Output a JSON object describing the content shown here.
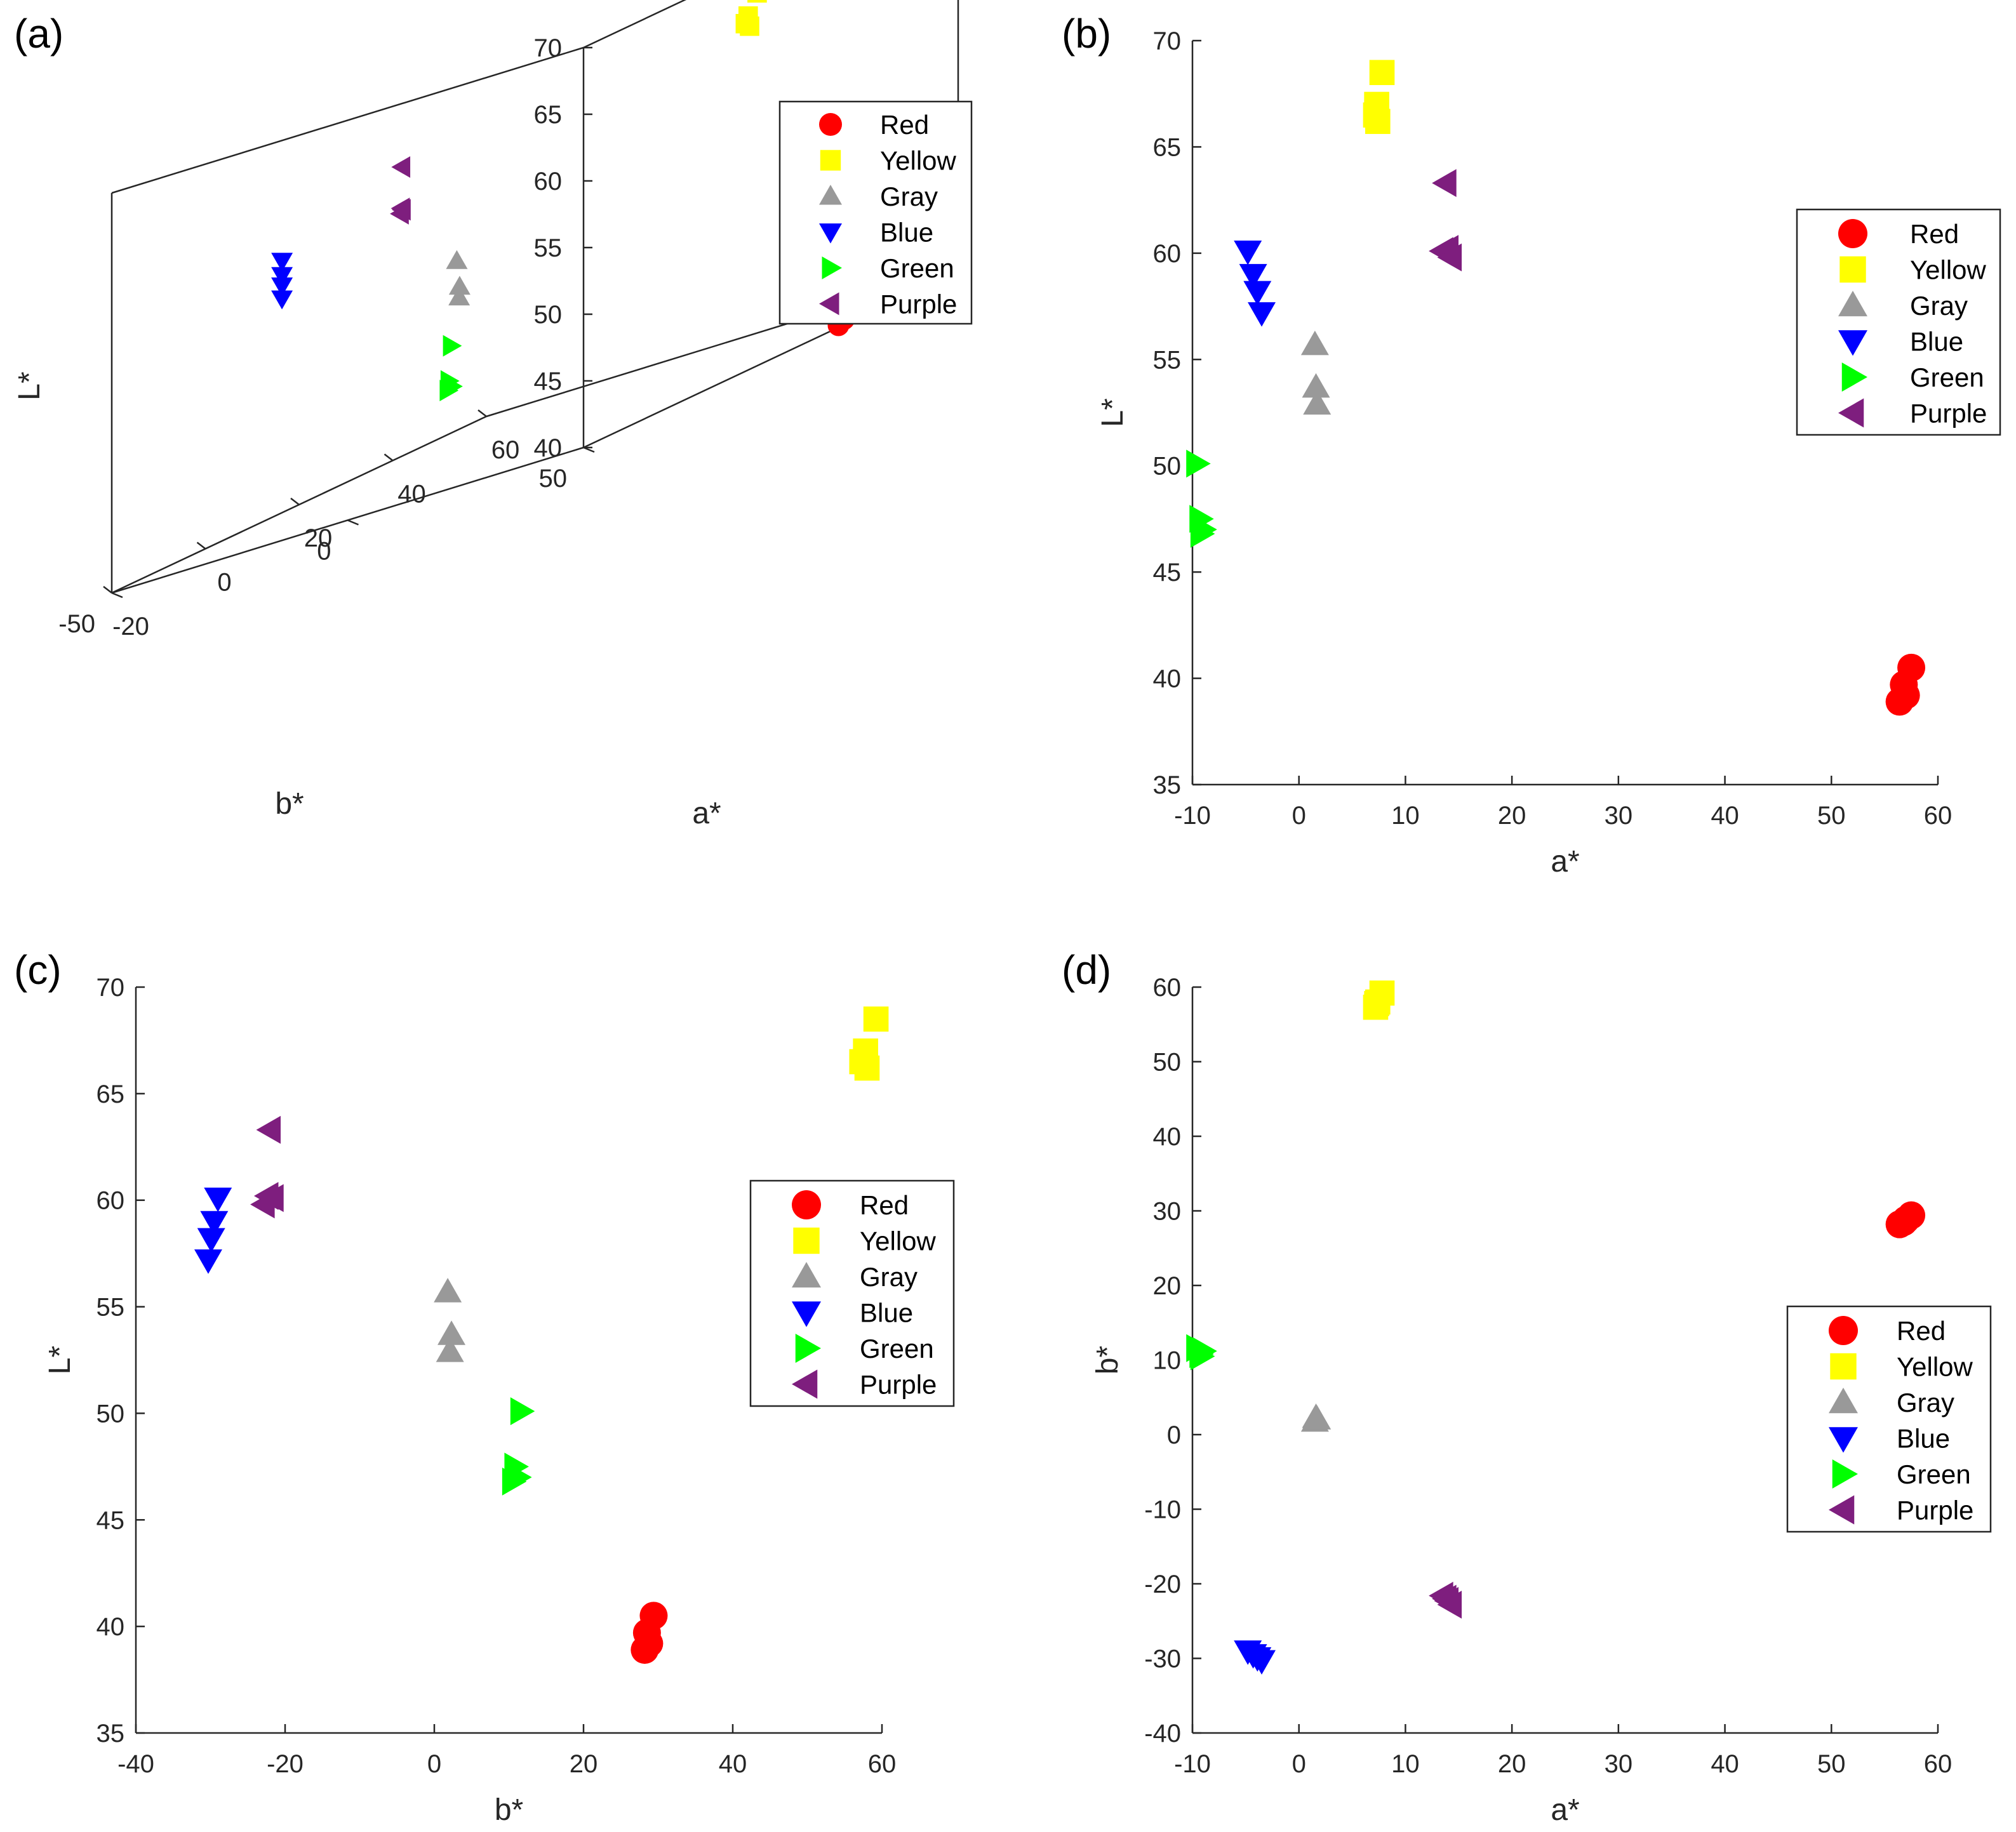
{
  "colors": {
    "Red": "#ff0000",
    "Yellow": "#ffff00",
    "Gray": "#999999",
    "Blue": "#0000ff",
    "Green": "#00ff00",
    "Purple": "#7e1e7e"
  },
  "chart_data": [
    {
      "panel": "(a)",
      "type": "scatter",
      "projection": "3d",
      "xlabel": "a*",
      "ylabel": "b*",
      "zlabel": "L*",
      "xlim": [
        -20,
        60
      ],
      "ylim": [
        -50,
        50
      ],
      "zlim": [
        40,
        70
      ],
      "xticks": [
        "-20",
        "0",
        "20",
        "40",
        "60"
      ],
      "yticks": [
        "-50",
        "0",
        "50"
      ],
      "zticks": [
        "40",
        "45",
        "50",
        "55",
        "60",
        "65",
        "70"
      ],
      "legend": {
        "position": "top-right",
        "entries": [
          "Red",
          "Yellow",
          "Gray",
          "Blue",
          "Green",
          "Purple"
        ]
      },
      "series": [
        {
          "name": "Red",
          "marker": "circle",
          "points": [
            [
              57.5,
              29.4,
              40.5
            ],
            [
              56.8,
              28.5,
              39.7
            ],
            [
              56.4,
              28.2,
              38.9
            ],
            [
              57.0,
              28.8,
              39.2
            ]
          ]
        },
        {
          "name": "Yellow",
          "marker": "square",
          "points": [
            [
              7.8,
              59.2,
              68.5
            ],
            [
              7.3,
              57.8,
              67.0
            ],
            [
              7.2,
              57.3,
              66.5
            ],
            [
              7.4,
              58.0,
              66.2
            ]
          ]
        },
        {
          "name": "Gray",
          "marker": "triangle-up",
          "points": [
            [
              1.5,
              1.8,
              55.7
            ],
            [
              1.6,
              2.3,
              53.7
            ],
            [
              1.7,
              2.1,
              52.9
            ]
          ]
        },
        {
          "name": "Blue",
          "marker": "triangle-down",
          "points": [
            [
              -4.8,
              -29.0,
              60.1
            ],
            [
              -4.3,
              -29.5,
              59.0
            ],
            [
              -3.9,
              -29.9,
              58.2
            ],
            [
              -3.5,
              -30.3,
              57.2
            ]
          ]
        },
        {
          "name": "Green",
          "marker": "triangle-right",
          "points": [
            [
              -9.6,
              11.6,
              50.1
            ],
            [
              -9.3,
              10.8,
              47.5
            ],
            [
              -9.0,
              11.2,
              47.0
            ],
            [
              -9.2,
              10.5,
              46.8
            ]
          ]
        },
        {
          "name": "Purple",
          "marker": "triangle-left",
          "points": [
            [
              13.8,
              -22.0,
              63.3
            ],
            [
              13.5,
              -21.6,
              60.1
            ],
            [
              14.0,
              -22.3,
              60.2
            ],
            [
              14.3,
              -22.8,
              59.8
            ]
          ]
        }
      ]
    },
    {
      "panel": "(b)",
      "type": "scatter",
      "xlabel": "a*",
      "ylabel": "L*",
      "xlim": [
        -10,
        60
      ],
      "ylim": [
        35,
        70
      ],
      "xticks": [
        "-10",
        "0",
        "10",
        "20",
        "30",
        "40",
        "50",
        "60"
      ],
      "yticks": [
        "35",
        "40",
        "45",
        "50",
        "55",
        "60",
        "65",
        "70"
      ],
      "legend": {
        "position": "right",
        "entries": [
          "Red",
          "Yellow",
          "Gray",
          "Blue",
          "Green",
          "Purple"
        ]
      },
      "series": [
        {
          "name": "Red",
          "marker": "circle",
          "points": [
            [
              57.5,
              40.5
            ],
            [
              56.8,
              39.7
            ],
            [
              56.4,
              38.9
            ],
            [
              57.0,
              39.2
            ]
          ]
        },
        {
          "name": "Yellow",
          "marker": "square",
          "points": [
            [
              7.8,
              68.5
            ],
            [
              7.3,
              67.0
            ],
            [
              7.2,
              66.5
            ],
            [
              7.4,
              66.2
            ]
          ]
        },
        {
          "name": "Gray",
          "marker": "triangle-up",
          "points": [
            [
              1.5,
              55.7
            ],
            [
              1.6,
              53.7
            ],
            [
              1.7,
              52.9
            ]
          ]
        },
        {
          "name": "Blue",
          "marker": "triangle-down",
          "points": [
            [
              -4.8,
              60.1
            ],
            [
              -4.3,
              59.0
            ],
            [
              -3.9,
              58.2
            ],
            [
              -3.5,
              57.2
            ]
          ]
        },
        {
          "name": "Green",
          "marker": "triangle-right",
          "points": [
            [
              -9.6,
              50.1
            ],
            [
              -9.3,
              47.5
            ],
            [
              -9.0,
              47.0
            ],
            [
              -9.2,
              46.8
            ]
          ]
        },
        {
          "name": "Purple",
          "marker": "triangle-left",
          "points": [
            [
              13.8,
              63.3
            ],
            [
              13.5,
              60.1
            ],
            [
              14.0,
              60.2
            ],
            [
              14.3,
              59.8
            ]
          ]
        }
      ]
    },
    {
      "panel": "(c)",
      "type": "scatter",
      "xlabel": "b*",
      "ylabel": "L*",
      "xlim": [
        -40,
        60
      ],
      "ylim": [
        35,
        70
      ],
      "xticks": [
        "-40",
        "-20",
        "0",
        "20",
        "40",
        "60"
      ],
      "yticks": [
        "35",
        "40",
        "45",
        "50",
        "55",
        "60",
        "65",
        "70"
      ],
      "legend": {
        "position": "right",
        "entries": [
          "Red",
          "Yellow",
          "Gray",
          "Blue",
          "Green",
          "Purple"
        ]
      },
      "series": [
        {
          "name": "Red",
          "marker": "circle",
          "points": [
            [
              29.4,
              40.5
            ],
            [
              28.5,
              39.7
            ],
            [
              28.2,
              38.9
            ],
            [
              28.8,
              39.2
            ]
          ]
        },
        {
          "name": "Yellow",
          "marker": "square",
          "points": [
            [
              59.2,
              68.5
            ],
            [
              57.8,
              67.0
            ],
            [
              57.3,
              66.5
            ],
            [
              58.0,
              66.2
            ]
          ]
        },
        {
          "name": "Gray",
          "marker": "triangle-up",
          "points": [
            [
              1.8,
              55.7
            ],
            [
              2.3,
              53.7
            ],
            [
              2.1,
              52.9
            ]
          ]
        },
        {
          "name": "Blue",
          "marker": "triangle-down",
          "points": [
            [
              -29.0,
              60.1
            ],
            [
              -29.5,
              59.0
            ],
            [
              -29.9,
              58.2
            ],
            [
              -30.3,
              57.2
            ]
          ]
        },
        {
          "name": "Green",
          "marker": "triangle-right",
          "points": [
            [
              11.6,
              50.1
            ],
            [
              10.8,
              47.5
            ],
            [
              11.2,
              47.0
            ],
            [
              10.5,
              46.8
            ]
          ]
        },
        {
          "name": "Purple",
          "marker": "triangle-left",
          "points": [
            [
              -22.0,
              63.3
            ],
            [
              -21.6,
              60.1
            ],
            [
              -22.3,
              60.2
            ],
            [
              -22.8,
              59.8
            ]
          ]
        }
      ]
    },
    {
      "panel": "(d)",
      "type": "scatter",
      "xlabel": "a*",
      "ylabel": "b*",
      "xlim": [
        -10,
        60
      ],
      "ylim": [
        -40,
        60
      ],
      "xticks": [
        "-10",
        "0",
        "10",
        "20",
        "30",
        "40",
        "50",
        "60"
      ],
      "yticks": [
        "-40",
        "-30",
        "-20",
        "-10",
        "0",
        "10",
        "20",
        "30",
        "40",
        "50",
        "60"
      ],
      "legend": {
        "position": "right",
        "entries": [
          "Red",
          "Yellow",
          "Gray",
          "Blue",
          "Green",
          "Purple"
        ]
      },
      "series": [
        {
          "name": "Red",
          "marker": "circle",
          "points": [
            [
              57.5,
              29.4
            ],
            [
              56.8,
              28.5
            ],
            [
              56.4,
              28.2
            ],
            [
              57.0,
              28.8
            ]
          ]
        },
        {
          "name": "Yellow",
          "marker": "square",
          "points": [
            [
              7.8,
              59.2
            ],
            [
              7.3,
              57.8
            ],
            [
              7.2,
              57.3
            ],
            [
              7.4,
              58.0
            ]
          ]
        },
        {
          "name": "Gray",
          "marker": "triangle-up",
          "points": [
            [
              1.5,
              1.8
            ],
            [
              1.6,
              2.3
            ],
            [
              1.7,
              2.1
            ]
          ]
        },
        {
          "name": "Blue",
          "marker": "triangle-down",
          "points": [
            [
              -4.8,
              -29.0
            ],
            [
              -4.3,
              -29.5
            ],
            [
              -3.9,
              -29.9
            ],
            [
              -3.5,
              -30.3
            ]
          ]
        },
        {
          "name": "Green",
          "marker": "triangle-right",
          "points": [
            [
              -9.6,
              11.6
            ],
            [
              -9.3,
              10.8
            ],
            [
              -9.0,
              11.2
            ],
            [
              -9.2,
              10.5
            ]
          ]
        },
        {
          "name": "Purple",
          "marker": "triangle-left",
          "points": [
            [
              13.8,
              -22.0
            ],
            [
              13.5,
              -21.6
            ],
            [
              14.0,
              -22.3
            ],
            [
              14.3,
              -22.8
            ]
          ]
        }
      ]
    }
  ]
}
